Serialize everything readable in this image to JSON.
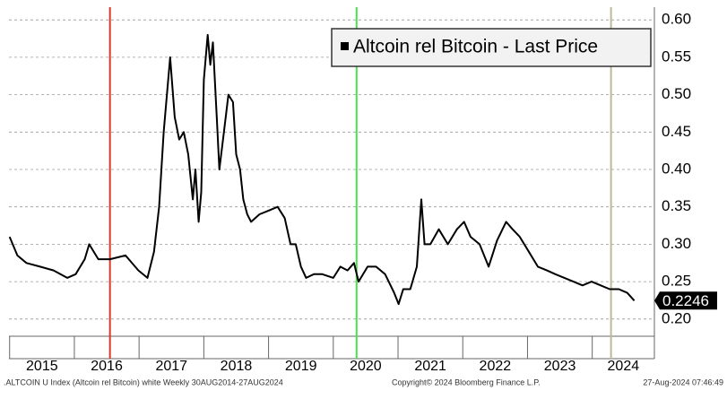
{
  "chart_data": {
    "type": "line",
    "legend_title": "Altcoin rel Bitcoin - Last Price",
    "footer_left": ".ALTCOIN U Index (Altcoin rel Bitcoin) white  Weekly 30AUG2014-27AUG2024",
    "footer_center": "Copyright© 2024 Bloomberg Finance L.P.",
    "footer_right": "27-Aug-2024 07:46:49",
    "x": [
      2015.0,
      2015.12,
      2015.26,
      2015.47,
      2015.68,
      2015.89,
      2016.02,
      2016.16,
      2016.23,
      2016.37,
      2016.55,
      2016.79,
      2016.99,
      2017.13,
      2017.23,
      2017.31,
      2017.38,
      2017.48,
      2017.55,
      2017.62,
      2017.69,
      2017.76,
      2017.83,
      2017.87,
      2017.92,
      2017.96,
      2018.0,
      2018.06,
      2018.1,
      2018.14,
      2018.2,
      2018.24,
      2018.31,
      2018.38,
      2018.45,
      2018.5,
      2018.56,
      2018.61,
      2018.67,
      2018.73,
      2018.86,
      2019.0,
      2019.14,
      2019.25,
      2019.34,
      2019.42,
      2019.5,
      2019.58,
      2019.7,
      2019.83,
      2020.0,
      2020.11,
      2020.22,
      2020.32,
      2020.39,
      2020.53,
      2020.66,
      2020.8,
      2020.94,
      2021.01,
      2021.08,
      2021.19,
      2021.29,
      2021.36,
      2021.41,
      2021.5,
      2021.63,
      2021.77,
      2021.91,
      2022.02,
      2022.12,
      2022.26,
      2022.4,
      2022.53,
      2022.67,
      2022.77,
      2022.88,
      2023.02,
      2023.16,
      2023.3,
      2023.43,
      2023.57,
      2023.71,
      2023.85,
      2023.99,
      2024.13,
      2024.27,
      2024.41,
      2024.54,
      2024.65
    ],
    "series": [
      {
        "name": "Altcoin rel Bitcoin - Last Price",
        "color": "#000000",
        "values": [
          0.31,
          0.285,
          0.275,
          0.27,
          0.265,
          0.255,
          0.26,
          0.28,
          0.3,
          0.28,
          0.28,
          0.285,
          0.265,
          0.255,
          0.29,
          0.35,
          0.45,
          0.55,
          0.47,
          0.44,
          0.45,
          0.42,
          0.36,
          0.4,
          0.33,
          0.37,
          0.52,
          0.58,
          0.54,
          0.57,
          0.47,
          0.4,
          0.45,
          0.5,
          0.49,
          0.42,
          0.4,
          0.36,
          0.34,
          0.33,
          0.34,
          0.345,
          0.35,
          0.335,
          0.3,
          0.3,
          0.27,
          0.255,
          0.26,
          0.26,
          0.255,
          0.27,
          0.265,
          0.275,
          0.25,
          0.27,
          0.27,
          0.26,
          0.235,
          0.22,
          0.24,
          0.24,
          0.27,
          0.36,
          0.3,
          0.3,
          0.32,
          0.3,
          0.32,
          0.33,
          0.31,
          0.3,
          0.27,
          0.305,
          0.33,
          0.32,
          0.31,
          0.29,
          0.27,
          0.265,
          0.26,
          0.255,
          0.25,
          0.245,
          0.25,
          0.245,
          0.24,
          0.24,
          0.235,
          0.2246
        ]
      }
    ],
    "xlim": [
      2014.99,
      2024.96
    ],
    "xticks": [
      2015,
      2016,
      2017,
      2018,
      2019,
      2020,
      2021,
      2022,
      2023,
      2024
    ],
    "ylim": [
      0.177,
      0.617
    ],
    "yticks": [
      {
        "value": 0.2,
        "label": "0.20"
      },
      0.25,
      {
        "value": 0.3,
        "label": "0.30"
      },
      0.35,
      {
        "value": 0.4,
        "label": "0.40"
      },
      0.45,
      {
        "value": 0.5,
        "label": "0.50"
      },
      0.55,
      {
        "value": 0.6,
        "label": "0.60"
      }
    ],
    "grid": true,
    "vlines": [
      {
        "x": 2016.55,
        "color": "#d9382a"
      },
      {
        "x": 2020.36,
        "color": "#4be34b"
      },
      {
        "x": 2024.29,
        "color": "#bdb89a"
      }
    ]
  }
}
